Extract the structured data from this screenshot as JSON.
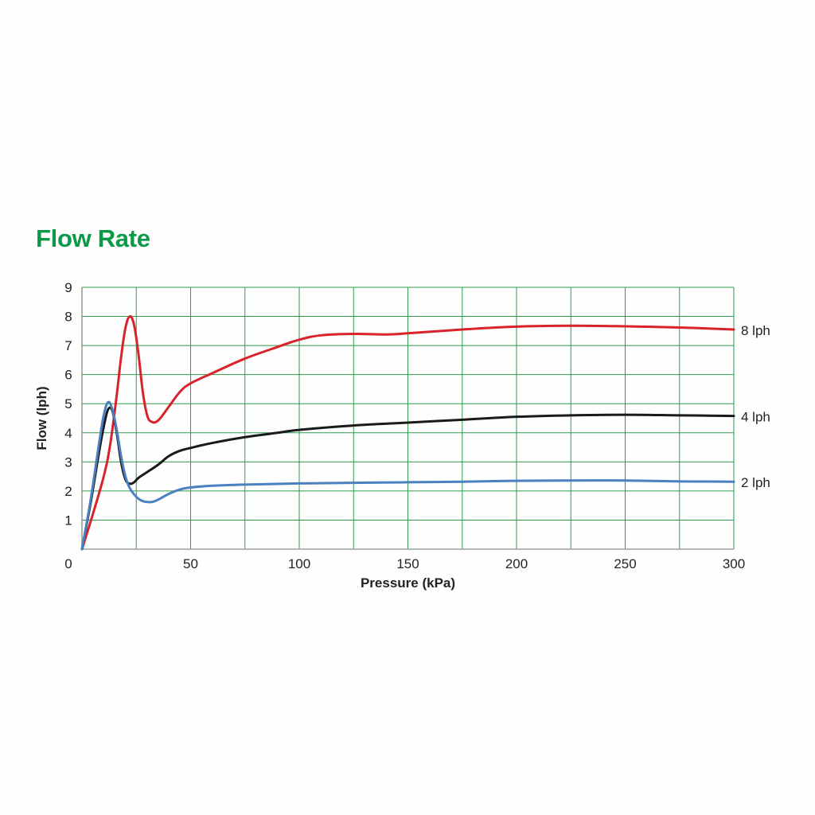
{
  "chart_data": {
    "type": "line",
    "title": "Flow Rate",
    "xlabel": "Pressure (kPa)",
    "ylabel": "Flow (lph)",
    "xlim": [
      0,
      300
    ],
    "ylim": [
      0,
      9
    ],
    "xticks": [
      0,
      50,
      100,
      150,
      200,
      250,
      300
    ],
    "yticks": [
      1,
      2,
      3,
      4,
      5,
      6,
      7,
      8,
      9
    ],
    "grid": true,
    "grid_x_step": 25,
    "grid_y_step": 1,
    "legend": "series labels at right end of lines",
    "series": [
      {
        "name": "8 lph",
        "color": "#d8232a",
        "x": [
          0,
          5,
          10,
          13,
          16,
          18,
          20,
          22,
          24,
          26,
          28,
          30,
          32,
          35,
          40,
          45,
          50,
          60,
          75,
          90,
          100,
          110,
          125,
          140,
          150,
          175,
          200,
          225,
          250,
          275,
          300
        ],
        "y": [
          0,
          1.2,
          2.5,
          3.6,
          5.3,
          6.6,
          7.6,
          8.0,
          7.7,
          6.7,
          5.4,
          4.6,
          4.38,
          4.42,
          4.9,
          5.4,
          5.7,
          6.05,
          6.55,
          6.95,
          7.2,
          7.35,
          7.4,
          7.38,
          7.42,
          7.55,
          7.65,
          7.68,
          7.66,
          7.62,
          7.55
        ]
      },
      {
        "name": "4 lph",
        "color": "#1a1a1a",
        "x": [
          0,
          4,
          8,
          10,
          12,
          14,
          16,
          18,
          20,
          22,
          24,
          26,
          30,
          35,
          40,
          45,
          50,
          60,
          75,
          90,
          100,
          125,
          150,
          175,
          200,
          225,
          250,
          275,
          300
        ],
        "y": [
          0,
          1.6,
          3.4,
          4.2,
          4.8,
          4.75,
          4.0,
          3.0,
          2.4,
          2.25,
          2.3,
          2.45,
          2.65,
          2.9,
          3.2,
          3.38,
          3.48,
          3.65,
          3.85,
          4.0,
          4.1,
          4.25,
          4.35,
          4.45,
          4.55,
          4.6,
          4.62,
          4.6,
          4.58
        ]
      },
      {
        "name": "2 lph",
        "color": "#4a7fc0",
        "x": [
          0,
          4,
          8,
          10,
          12,
          14,
          16,
          18,
          20,
          22,
          25,
          28,
          32,
          35,
          40,
          45,
          50,
          60,
          75,
          100,
          125,
          150,
          175,
          200,
          225,
          250,
          275,
          300
        ],
        "y": [
          0,
          1.7,
          3.7,
          4.6,
          5.05,
          4.8,
          4.1,
          3.2,
          2.5,
          2.1,
          1.8,
          1.65,
          1.62,
          1.7,
          1.9,
          2.05,
          2.12,
          2.18,
          2.22,
          2.26,
          2.28,
          2.3,
          2.32,
          2.35,
          2.36,
          2.36,
          2.33,
          2.32
        ]
      }
    ]
  },
  "colors": {
    "title": "#0a9a47",
    "grid": "#2e9a4a",
    "axis": "#9aa19c",
    "text": "#222222"
  }
}
